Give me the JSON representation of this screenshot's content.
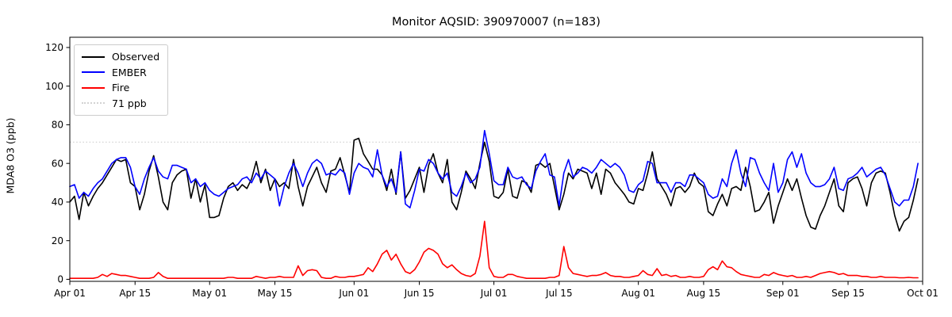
{
  "title": "Monitor AQSID: 390970007 (n=183)",
  "axes": {
    "ylabel": "MDA8 O3 (ppb)",
    "yticks": [
      0,
      20,
      40,
      60,
      80,
      100,
      120
    ],
    "xticks": [
      {
        "label": "Apr 01",
        "day": 0
      },
      {
        "label": "Apr 15",
        "day": 14
      },
      {
        "label": "May 01",
        "day": 30
      },
      {
        "label": "May 15",
        "day": 44
      },
      {
        "label": "Jun 01",
        "day": 61
      },
      {
        "label": "Jun 15",
        "day": 75
      },
      {
        "label": "Jul 01",
        "day": 91
      },
      {
        "label": "Jul 15",
        "day": 105
      },
      {
        "label": "Aug 01",
        "day": 122
      },
      {
        "label": "Aug 15",
        "day": 136
      },
      {
        "label": "Sep 01",
        "day": 153
      },
      {
        "label": "Sep 15",
        "day": 167
      },
      {
        "label": "Oct 01",
        "day": 183
      }
    ]
  },
  "legend": {
    "items": [
      {
        "label": "Observed",
        "color": "#000000",
        "line": "solid"
      },
      {
        "label": "EMBER",
        "color": "#0000ff",
        "line": "solid"
      },
      {
        "label": "Fire",
        "color": "#ff0000",
        "line": "solid"
      },
      {
        "label": "71 ppb",
        "color": "#d3d3d3",
        "line": "dotted"
      }
    ]
  },
  "chart_data": {
    "type": "line",
    "title": "Monitor AQSID: 390970007 (n=183)",
    "xlabel": "",
    "ylabel": "MDA8 O3 (ppb)",
    "x_start": "Apr 01",
    "x_end": "Oct 01",
    "n_points": 183,
    "ylim": [
      -1.05,
      125.3
    ],
    "grid": false,
    "legend_position": "upper left",
    "threshold": {
      "label": "71 ppb",
      "value": 71,
      "color": "#d3d3d3",
      "style": "dotted"
    },
    "series": [
      {
        "name": "Observed",
        "color": "#000000",
        "values": [
          40,
          43,
          31,
          45,
          38,
          43,
          47,
          50,
          54,
          58,
          62,
          61,
          62,
          50,
          48,
          36,
          44,
          56,
          64,
          53,
          40,
          36,
          50,
          54,
          56,
          57,
          42,
          52,
          40,
          49,
          32,
          32,
          33,
          42,
          48,
          50,
          46,
          49,
          47,
          52,
          61,
          50,
          57,
          46,
          52,
          48,
          50,
          47,
          62,
          48,
          38,
          48,
          53,
          58,
          50,
          45,
          56,
          57,
          63,
          54,
          45,
          72,
          73,
          65,
          61,
          57,
          57,
          54,
          46,
          57,
          44,
          66,
          42,
          46,
          52,
          58,
          45,
          59,
          65,
          55,
          50,
          62,
          40,
          36,
          45,
          56,
          52,
          47,
          60,
          71,
          61,
          43,
          42,
          45,
          57,
          43,
          42,
          51,
          50,
          45,
          59,
          60,
          58,
          60,
          48,
          36,
          44,
          55,
          52,
          57,
          56,
          55,
          47,
          55,
          44,
          57,
          55,
          50,
          47,
          44,
          40,
          39,
          47,
          46,
          55,
          66,
          52,
          48,
          44,
          38,
          47,
          48,
          45,
          48,
          55,
          50,
          48,
          35,
          33,
          39,
          44,
          38,
          47,
          48,
          46,
          58,
          48,
          35,
          36,
          40,
          45,
          29,
          38,
          45,
          52,
          46,
          52,
          42,
          33,
          27,
          26,
          33,
          38,
          45,
          52,
          38,
          35,
          50,
          52,
          53,
          47,
          38,
          50,
          55,
          56,
          55,
          45,
          33,
          25,
          30,
          32,
          41,
          52
        ]
      },
      {
        "name": "EMBER",
        "color": "#0000ff",
        "values": [
          48,
          49,
          42,
          45,
          43,
          47,
          50,
          52,
          56,
          60,
          62,
          63,
          63,
          58,
          48,
          44,
          52,
          58,
          63,
          56,
          53,
          52,
          59,
          59,
          58,
          57,
          50,
          52,
          48,
          50,
          46,
          44,
          43,
          45,
          47,
          48,
          49,
          52,
          53,
          50,
          55,
          52,
          56,
          54,
          52,
          38,
          48,
          55,
          60,
          55,
          48,
          55,
          60,
          62,
          60,
          54,
          55,
          54,
          57,
          55,
          44,
          55,
          60,
          58,
          57,
          53,
          67,
          54,
          48,
          52,
          45,
          66,
          39,
          37,
          46,
          57,
          56,
          62,
          60,
          55,
          52,
          55,
          45,
          43,
          48,
          55,
          50,
          52,
          58,
          77,
          65,
          51,
          49,
          49,
          58,
          53,
          52,
          53,
          49,
          47,
          56,
          61,
          65,
          54,
          53,
          38,
          55,
          62,
          53,
          55,
          58,
          57,
          55,
          58,
          62,
          60,
          58,
          60,
          58,
          54,
          46,
          45,
          49,
          51,
          61,
          60,
          50,
          50,
          50,
          45,
          50,
          50,
          48,
          54,
          54,
          52,
          50,
          44,
          42,
          43,
          52,
          48,
          60,
          67,
          55,
          48,
          63,
          62,
          55,
          50,
          46,
          60,
          45,
          50,
          62,
          66,
          58,
          65,
          55,
          50,
          48,
          48,
          49,
          52,
          58,
          47,
          46,
          52,
          53,
          55,
          58,
          53,
          55,
          57,
          58,
          54,
          47,
          40,
          38,
          41,
          41,
          48,
          60
        ]
      },
      {
        "name": "Fire",
        "color": "#ff0000",
        "values": [
          0.5,
          0.5,
          0.5,
          0.5,
          0.5,
          0.5,
          1,
          2.5,
          1.5,
          3,
          2.5,
          2,
          2,
          1.5,
          1,
          0.5,
          0.5,
          0.5,
          1,
          3.5,
          1.5,
          0.5,
          0.5,
          0.5,
          0.5,
          0.5,
          0.5,
          0.5,
          0.5,
          0.5,
          0.5,
          0.5,
          0.5,
          0.5,
          1,
          1,
          0.5,
          0.5,
          0.5,
          0.5,
          1.5,
          1,
          0.5,
          1,
          1,
          1.5,
          1,
          1,
          1,
          7,
          2,
          4.5,
          5,
          4.5,
          1,
          0.5,
          0.5,
          1.5,
          1,
          1,
          1.5,
          1.5,
          2,
          2.5,
          6,
          4,
          8,
          13,
          15,
          10,
          13,
          8,
          4,
          3,
          5,
          9,
          14,
          16,
          15,
          13,
          8,
          6,
          7.5,
          5,
          3,
          2,
          1.5,
          3,
          12,
          30,
          6,
          1.5,
          1,
          1,
          2.5,
          2.5,
          1.5,
          1,
          0.5,
          0.5,
          0.5,
          0.5,
          0.5,
          1,
          1,
          2,
          17,
          6,
          3,
          2.5,
          2,
          1.5,
          2,
          2,
          2.5,
          3.5,
          2,
          1.5,
          1.5,
          1,
          1,
          1.5,
          2,
          4.5,
          2.5,
          2,
          5.5,
          2,
          2.5,
          1.5,
          2,
          1,
          1,
          1.5,
          1,
          1,
          1.5,
          5,
          6.5,
          5,
          9.5,
          6.5,
          6,
          4,
          2.5,
          2,
          1.5,
          1,
          1,
          2.5,
          2,
          3.5,
          2.5,
          2,
          1.5,
          2,
          1,
          1,
          1.5,
          1,
          2,
          3,
          3.5,
          4,
          3.5,
          2.5,
          3,
          2,
          2,
          2,
          1.5,
          1.5,
          1,
          1,
          1.5,
          1,
          1,
          1,
          0.8,
          0.8,
          1,
          0.8,
          0.8
        ]
      }
    ]
  }
}
